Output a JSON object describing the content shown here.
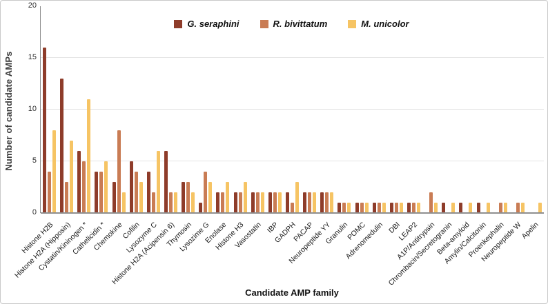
{
  "chart_data": {
    "type": "bar",
    "title": "",
    "xlabel": "Candidate AMP family",
    "ylabel": "Number of candidate AMPs",
    "ylim": [
      0,
      20
    ],
    "yticks": [
      0,
      5,
      10,
      15,
      20
    ],
    "grid": "horizontal light gray lines at 5, 10, 15",
    "legend_position": "top-center",
    "categories": [
      "Histone H2B",
      "Histone H2A (Hipposin)",
      "Cystatin/Kininogen *",
      "Cathelicidin *",
      "Chemokine",
      "Cofilin",
      "Lysozyme C",
      "Histone H2A (Acipensin 6)",
      "Thymosin",
      "Lysozime G",
      "Enolase",
      "Histone H3",
      "Vasostatin",
      "IBP",
      "GADPH",
      "PACAP",
      "Neuropeptide YY",
      "Granulin",
      "POMC",
      "Adrenomedulin",
      "DBI",
      "LEAP2",
      "A1P/Antitrypsin",
      "Chrombacin/Secretogranin",
      "Beta-amyloid",
      "Amylin/Calcitonin",
      "Proenkephalin",
      "Neuropeptide W",
      "Apelin"
    ],
    "series": [
      {
        "name": "G. seraphini",
        "color": "#8e3c2a",
        "values": [
          16,
          13,
          6,
          4,
          3,
          5,
          4,
          6,
          3,
          1,
          2,
          2,
          2,
          2,
          2,
          2,
          2,
          1,
          1,
          1,
          1,
          1,
          0,
          1,
          1,
          1,
          0,
          0,
          0
        ]
      },
      {
        "name": "R. bivittatum",
        "color": "#c97c54",
        "values": [
          4,
          3,
          5,
          4,
          8,
          4,
          2,
          2,
          3,
          4,
          2,
          2,
          2,
          2,
          1,
          2,
          2,
          1,
          1,
          1,
          1,
          1,
          2,
          0,
          0,
          0,
          1,
          1,
          0
        ]
      },
      {
        "name": "M. unicolor",
        "color": "#f6c464",
        "values": [
          8,
          7,
          11,
          5,
          2,
          3,
          6,
          2,
          2,
          3,
          3,
          3,
          2,
          2,
          3,
          2,
          2,
          1,
          1,
          1,
          1,
          1,
          1,
          1,
          1,
          1,
          1,
          1,
          1
        ]
      }
    ],
    "axis_color": "#8f8f8f",
    "gridline_color": "#e4e4e4"
  }
}
